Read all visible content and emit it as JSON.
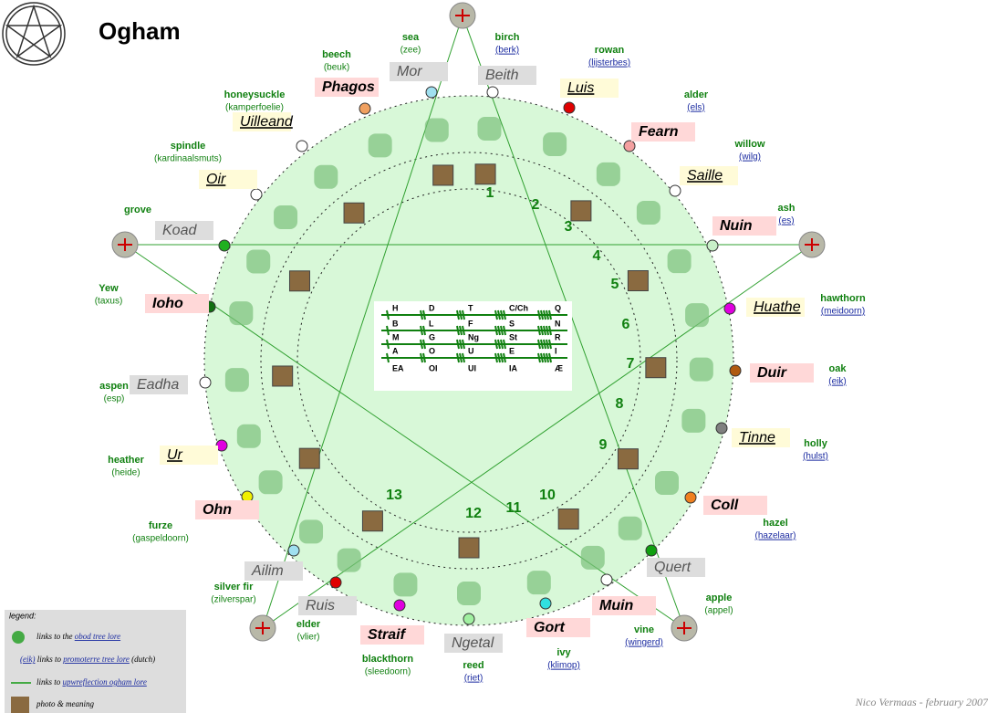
{
  "header": {
    "title": "Ogham"
  },
  "nodes": [
    {
      "ogham": "Beith",
      "tree": "birch",
      "dutch": "(berk)",
      "color": "#ffffff"
    },
    {
      "ogham": "Luis",
      "tree": "rowan",
      "dutch": "(lijsterbes)",
      "color": "#e00000"
    },
    {
      "ogham": "Fearn",
      "tree": "alder",
      "dutch": "(els)",
      "color": "#f4a0a0"
    },
    {
      "ogham": "Saille",
      "tree": "willow",
      "dutch": "(wilg)",
      "color": "#ffffff"
    },
    {
      "ogham": "Nuin",
      "tree": "ash",
      "dutch": "(es)",
      "color": "#c8f0c8"
    },
    {
      "ogham": "Huathe",
      "tree": "hawthorn",
      "dutch": "(meidoorn)",
      "color": "#e000e0"
    },
    {
      "ogham": "Duir",
      "tree": "oak",
      "dutch": "(eik)",
      "color": "#b05a10"
    },
    {
      "ogham": "Tinne",
      "tree": "holly",
      "dutch": "(hulst)",
      "color": "#808080"
    },
    {
      "ogham": "Coll",
      "tree": "hazel",
      "dutch": "(hazelaar)",
      "color": "#f08020"
    },
    {
      "ogham": "Quert",
      "tree": "apple",
      "dutch": "(appel)",
      "color": "#10a010"
    },
    {
      "ogham": "Muin",
      "tree": "vine",
      "dutch": "(wingerd)",
      "color": "#ffffff"
    },
    {
      "ogham": "Gort",
      "tree": "ivy",
      "dutch": "(klimop)",
      "color": "#30e0e0"
    },
    {
      "ogham": "Ngetal",
      "tree": "reed",
      "dutch": "(riet)",
      "color": "#a0f0a0"
    },
    {
      "ogham": "Straif",
      "tree": "blackthorn",
      "dutch": "(sleedoorn)",
      "color": "#e000e0"
    },
    {
      "ogham": "Ruis",
      "tree": "elder",
      "dutch": "(vlier)",
      "color": "#e00000"
    },
    {
      "ogham": "Ailim",
      "tree": "silver fir",
      "dutch": "(zilverspar)",
      "color": "#a0e0f0"
    },
    {
      "ogham": "Ohn",
      "tree": "furze",
      "dutch": "(gaspeldoorn)",
      "color": "#f0f000"
    },
    {
      "ogham": "Ur",
      "tree": "heather",
      "dutch": "(heide)",
      "color": "#e000e0"
    },
    {
      "ogham": "Eadha",
      "tree": "aspen",
      "dutch": "(esp)",
      "color": "#ffffff"
    },
    {
      "ogham": "Ioho",
      "tree": "Yew",
      "dutch": "(taxus)",
      "color": "#107010"
    },
    {
      "ogham": "Koad",
      "tree": "grove",
      "color": "#20b020"
    },
    {
      "ogham": "Oir",
      "tree": "spindle",
      "dutch": "(kardinaalsmuts)",
      "color": "#ffffff"
    },
    {
      "ogham": "Uilleand",
      "tree": "honeysuckle",
      "dutch": "(kamperfoelie)",
      "color": "#ffffff"
    },
    {
      "ogham": "Phagos",
      "tree": "beech",
      "dutch": "(beuk)",
      "color": "#f0a060"
    },
    {
      "ogham": "Mor",
      "tree": "sea",
      "dutch": "(zee)",
      "color": "#a0e0f0"
    }
  ],
  "numbers": [
    "1",
    "2",
    "3",
    "4",
    "5",
    "6",
    "7",
    "8",
    "9",
    "10",
    "11",
    "12",
    "13"
  ],
  "key": {
    "rows": [
      [
        "H",
        "D",
        "T",
        "C/Ch",
        "Q"
      ],
      [
        "B",
        "L",
        "F",
        "S",
        "N"
      ],
      [
        "M",
        "G",
        "Ng",
        "St",
        "R"
      ],
      [
        "A",
        "O",
        "U",
        "E",
        "I"
      ],
      [
        "EA",
        "OI",
        "UI",
        "IA",
        "Æ"
      ]
    ]
  },
  "legend": {
    "title": "legend:",
    "items": [
      {
        "prefix": "links to the",
        "link": "obod tree lore"
      },
      {
        "prefix": "(eik)",
        "text": "links to",
        "link": "promoterre tree lore",
        "suffix": "(dutch)"
      },
      {
        "prefix": "links to",
        "link": "upwreflection ogham lore"
      },
      {
        "prefix": "photo & meaning"
      }
    ]
  },
  "footer": {
    "author": "Nico Vermaas - february 2007"
  }
}
